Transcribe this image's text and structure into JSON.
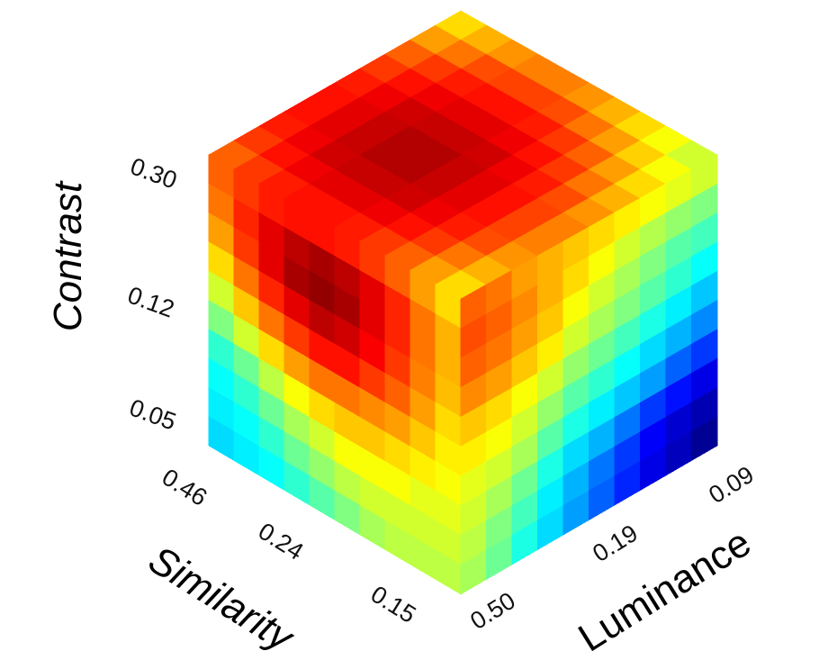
{
  "chart_data": {
    "type": "heatmap",
    "subtype": "3d-cube-surface-heatmap",
    "colormap": "jet",
    "grid_size": 10,
    "axes": {
      "contrast": {
        "label": "Contrast",
        "ticks": [
          "0.30",
          "0.12",
          "0.05"
        ]
      },
      "similarity": {
        "label": "Similarity",
        "ticks": [
          "0.46",
          "0.24",
          "0.15"
        ]
      },
      "luminance": {
        "label": "Luminance",
        "ticks": [
          "0.50",
          "0.19",
          "0.09"
        ]
      }
    },
    "faces": {
      "top": {
        "description": "visible top face of the cube, normalized color values 0 (blue) to 1 (red)",
        "values": [
          [
            0.78,
            0.82,
            0.85,
            0.86,
            0.86,
            0.85,
            0.82,
            0.78,
            0.72,
            0.66
          ],
          [
            0.82,
            0.86,
            0.89,
            0.9,
            0.9,
            0.89,
            0.86,
            0.82,
            0.76,
            0.7
          ],
          [
            0.85,
            0.89,
            0.92,
            0.93,
            0.93,
            0.92,
            0.89,
            0.85,
            0.8,
            0.73
          ],
          [
            0.86,
            0.9,
            0.93,
            0.95,
            0.95,
            0.93,
            0.9,
            0.86,
            0.81,
            0.75
          ],
          [
            0.86,
            0.9,
            0.93,
            0.95,
            0.95,
            0.93,
            0.9,
            0.86,
            0.81,
            0.75
          ],
          [
            0.85,
            0.89,
            0.92,
            0.93,
            0.93,
            0.92,
            0.89,
            0.85,
            0.8,
            0.73
          ],
          [
            0.82,
            0.86,
            0.89,
            0.9,
            0.9,
            0.89,
            0.86,
            0.82,
            0.76,
            0.7
          ],
          [
            0.78,
            0.82,
            0.85,
            0.86,
            0.86,
            0.85,
            0.82,
            0.78,
            0.72,
            0.66
          ],
          [
            0.72,
            0.76,
            0.8,
            0.81,
            0.81,
            0.8,
            0.76,
            0.72,
            0.67,
            0.62
          ],
          [
            0.66,
            0.7,
            0.73,
            0.75,
            0.75,
            0.73,
            0.7,
            0.66,
            0.62,
            0.58
          ]
        ]
      },
      "left": {
        "description": "front-left face (Similarity x Contrast), rows top to bottom",
        "values": [
          [
            0.78,
            0.82,
            0.85,
            0.86,
            0.86,
            0.85,
            0.82,
            0.78,
            0.72,
            0.66
          ],
          [
            0.76,
            0.84,
            0.9,
            0.94,
            0.96,
            0.94,
            0.9,
            0.84,
            0.76,
            0.7
          ],
          [
            0.72,
            0.82,
            0.9,
            0.96,
            0.98,
            0.96,
            0.9,
            0.84,
            0.76,
            0.7
          ],
          [
            0.66,
            0.76,
            0.84,
            0.9,
            0.94,
            0.92,
            0.88,
            0.82,
            0.75,
            0.69
          ],
          [
            0.58,
            0.68,
            0.76,
            0.82,
            0.86,
            0.86,
            0.82,
            0.78,
            0.72,
            0.66
          ],
          [
            0.5,
            0.58,
            0.66,
            0.72,
            0.76,
            0.76,
            0.74,
            0.72,
            0.68,
            0.64
          ],
          [
            0.42,
            0.48,
            0.56,
            0.62,
            0.66,
            0.68,
            0.68,
            0.66,
            0.64,
            0.62
          ],
          [
            0.38,
            0.42,
            0.48,
            0.54,
            0.58,
            0.62,
            0.62,
            0.62,
            0.6,
            0.6
          ],
          [
            0.36,
            0.38,
            0.42,
            0.48,
            0.52,
            0.56,
            0.58,
            0.58,
            0.58,
            0.58
          ],
          [
            0.34,
            0.36,
            0.38,
            0.42,
            0.46,
            0.5,
            0.54,
            0.56,
            0.56,
            0.56
          ]
        ]
      },
      "right": {
        "description": "front-right face (Luminance x Contrast), rows top to bottom",
        "values": [
          [
            0.78,
            0.76,
            0.72,
            0.7,
            0.68,
            0.66,
            0.64,
            0.62,
            0.6,
            0.58
          ],
          [
            0.8,
            0.78,
            0.74,
            0.7,
            0.66,
            0.62,
            0.58,
            0.55,
            0.52,
            0.5
          ],
          [
            0.78,
            0.76,
            0.72,
            0.68,
            0.62,
            0.58,
            0.54,
            0.5,
            0.46,
            0.44
          ],
          [
            0.74,
            0.72,
            0.68,
            0.64,
            0.58,
            0.54,
            0.5,
            0.46,
            0.42,
            0.38
          ],
          [
            0.68,
            0.66,
            0.62,
            0.58,
            0.52,
            0.48,
            0.44,
            0.4,
            0.36,
            0.32
          ],
          [
            0.64,
            0.62,
            0.58,
            0.52,
            0.46,
            0.42,
            0.38,
            0.34,
            0.3,
            0.26
          ],
          [
            0.6,
            0.58,
            0.54,
            0.46,
            0.4,
            0.36,
            0.32,
            0.28,
            0.22,
            0.18
          ],
          [
            0.58,
            0.54,
            0.48,
            0.4,
            0.34,
            0.3,
            0.24,
            0.18,
            0.14,
            0.1
          ],
          [
            0.56,
            0.5,
            0.44,
            0.36,
            0.3,
            0.24,
            0.18,
            0.12,
            0.08,
            0.05
          ],
          [
            0.54,
            0.48,
            0.4,
            0.34,
            0.28,
            0.22,
            0.16,
            0.1,
            0.06,
            0.02
          ]
        ]
      }
    }
  }
}
